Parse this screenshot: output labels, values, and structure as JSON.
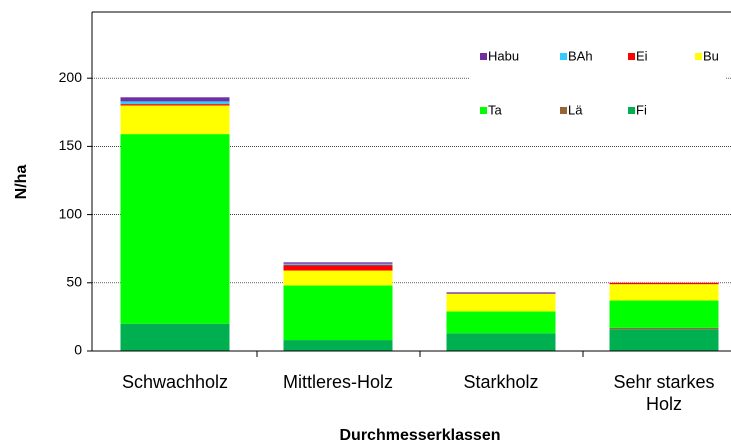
{
  "chart_data": {
    "type": "stacked_bar",
    "x_label": "Durchmesserklassen",
    "y_label": "N/ha",
    "categories": [
      "Schwachholz",
      "Mittleres-Holz",
      "Starkholz",
      "Sehr starkes Holz"
    ],
    "series": [
      {
        "name": "Fi",
        "color": "#00b050",
        "values": [
          20,
          8,
          13,
          16
        ]
      },
      {
        "name": "Lä",
        "color": "#996633",
        "values": [
          0,
          0,
          0,
          1
        ]
      },
      {
        "name": "Ta",
        "color": "#00ff00",
        "values": [
          139,
          40,
          16,
          20
        ]
      },
      {
        "name": "Bu",
        "color": "#ffff00",
        "values": [
          21,
          11,
          13,
          12
        ]
      },
      {
        "name": "Ei",
        "color": "#ff0000",
        "values": [
          1,
          4,
          0,
          1
        ]
      },
      {
        "name": "BAh",
        "color": "#33ccff",
        "values": [
          2,
          1,
          0,
          0
        ]
      },
      {
        "name": "Habu",
        "color": "#7030a0",
        "values": [
          3,
          1,
          1,
          0
        ]
      }
    ],
    "ylim": [
      0,
      250
    ],
    "yticks": [
      0,
      50,
      100,
      150,
      200
    ],
    "grid": true
  }
}
